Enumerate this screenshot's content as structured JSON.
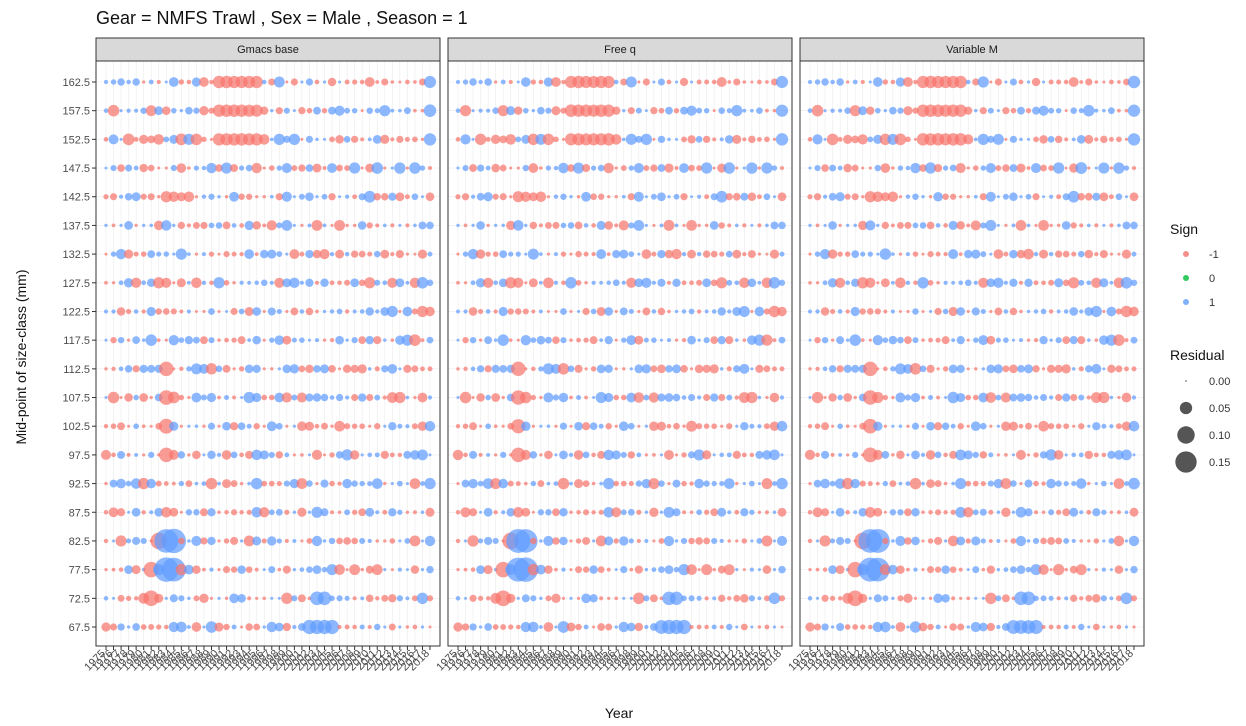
{
  "chart_data": {
    "type": "scatter",
    "title": "Gear = NMFS Trawl , Sex = Male , Season = 1",
    "xlabel": "Year",
    "ylabel": "Mid-point of size-class (mm)",
    "panels": [
      "Gmacs base",
      "Free q",
      "Variable M"
    ],
    "years": [
      1975,
      1976,
      1977,
      1978,
      1979,
      1980,
      1981,
      1982,
      1983,
      1984,
      1985,
      1986,
      1987,
      1988,
      1989,
      1990,
      1991,
      1992,
      1993,
      1994,
      1995,
      1996,
      1997,
      1998,
      1999,
      2000,
      2001,
      2002,
      2003,
      2004,
      2005,
      2006,
      2007,
      2008,
      2009,
      2010,
      2011,
      2012,
      2013,
      2014,
      2015,
      2016,
      2017,
      2018
    ],
    "size_classes": [
      67.5,
      72.5,
      77.5,
      82.5,
      87.5,
      92.5,
      97.5,
      102.5,
      107.5,
      112.5,
      117.5,
      122.5,
      127.5,
      132.5,
      137.5,
      142.5,
      147.5,
      152.5,
      157.5,
      162.5
    ],
    "grid": true,
    "legend": {
      "position": "right",
      "sign_title": "Sign",
      "sign_levels": [
        {
          "label": "-1",
          "color": "#F8766D"
        },
        {
          "label": "0",
          "color": "#00BA38"
        },
        {
          "label": "1",
          "color": "#619CFF"
        }
      ],
      "size_title": "Residual",
      "size_levels": [
        {
          "label": "0.00",
          "value": 0.0
        },
        {
          "label": "0.05",
          "value": 0.05
        },
        {
          "label": "0.10",
          "value": 0.1
        },
        {
          "label": "0.15",
          "value": 0.15
        }
      ]
    },
    "max_residual": 0.19
  }
}
